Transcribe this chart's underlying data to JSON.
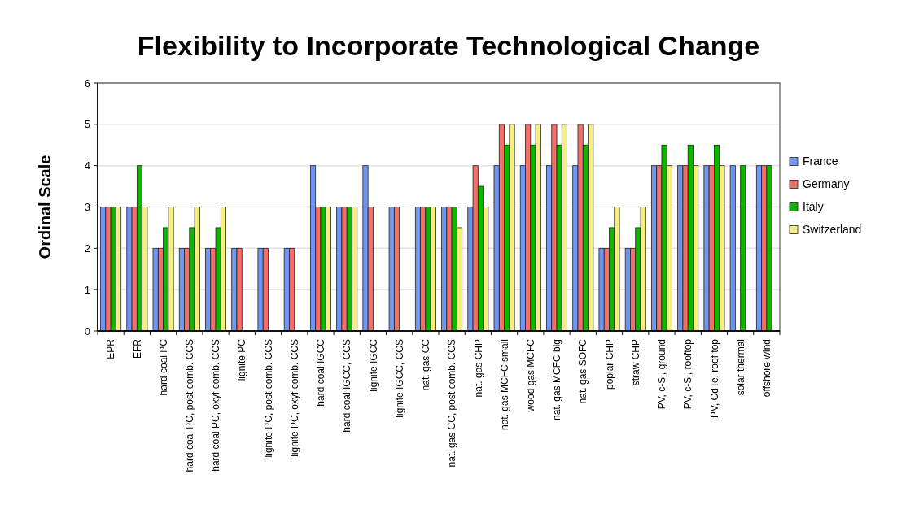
{
  "chart_data": {
    "type": "bar",
    "title": "Flexibility to Incorporate Technological Change",
    "ylabel": "Ordinal Scale",
    "categories": [
      "EPR",
      "EFR",
      "hard coal PC",
      "hard coal PC, post comb. CCS",
      "hard coal PC, oxyf comb. CCS",
      "lignite PC",
      "lignite PC, post comb. CCS",
      "lignite PC, oxyf comb. CCS",
      "hard coal IGCC",
      "hard coal IGCC, CCS",
      "lignite IGCC",
      "lignite IGCC, CCS",
      "nat. gas CC",
      "nat. gas CC, post comb. CCS",
      "nat. gas CHP",
      "nat. gas MCFC small",
      "wood gas MCFC",
      "nat. gas MCFC big",
      "nat. gas SOFC",
      "poplar CHP",
      "straw CHP",
      "PV, c-Si, ground",
      "PV, c-Si, rooftop",
      "PV, CdTe, roof top",
      "solar thermal",
      "offshore wind"
    ],
    "series": [
      {
        "name": "France",
        "color": "#6f96f0",
        "values": [
          3,
          3,
          2,
          2,
          2,
          2,
          2,
          2,
          4,
          3,
          4,
          3,
          3,
          3,
          3,
          4,
          4,
          4,
          4,
          2,
          2,
          4,
          4,
          4,
          4,
          4
        ]
      },
      {
        "name": "Germany",
        "color": "#f0706a",
        "values": [
          3,
          3,
          2,
          2,
          2,
          2,
          2,
          2,
          3,
          3,
          3,
          3,
          3,
          3,
          4,
          5,
          5,
          5,
          5,
          2,
          2,
          4,
          4,
          4,
          null,
          4
        ]
      },
      {
        "name": "Italy",
        "color": "#13b400",
        "values": [
          3,
          4,
          2.5,
          2.5,
          2.5,
          null,
          null,
          null,
          3,
          3,
          null,
          null,
          3,
          3,
          3.5,
          4.5,
          4.5,
          4.5,
          4.5,
          2.5,
          2.5,
          4.5,
          4.5,
          4.5,
          4,
          4
        ]
      },
      {
        "name": "Switzerland",
        "color": "#f5ee80",
        "values": [
          3,
          3,
          3,
          3,
          3,
          null,
          null,
          null,
          3,
          3,
          null,
          null,
          3,
          2.5,
          3,
          5,
          5,
          5,
          5,
          3,
          3,
          4,
          4,
          4,
          null,
          null
        ]
      }
    ],
    "ylim": [
      0,
      6
    ],
    "yticks": [
      0,
      1,
      2,
      3,
      4,
      5,
      6
    ],
    "grid": "y",
    "legend": "right"
  }
}
